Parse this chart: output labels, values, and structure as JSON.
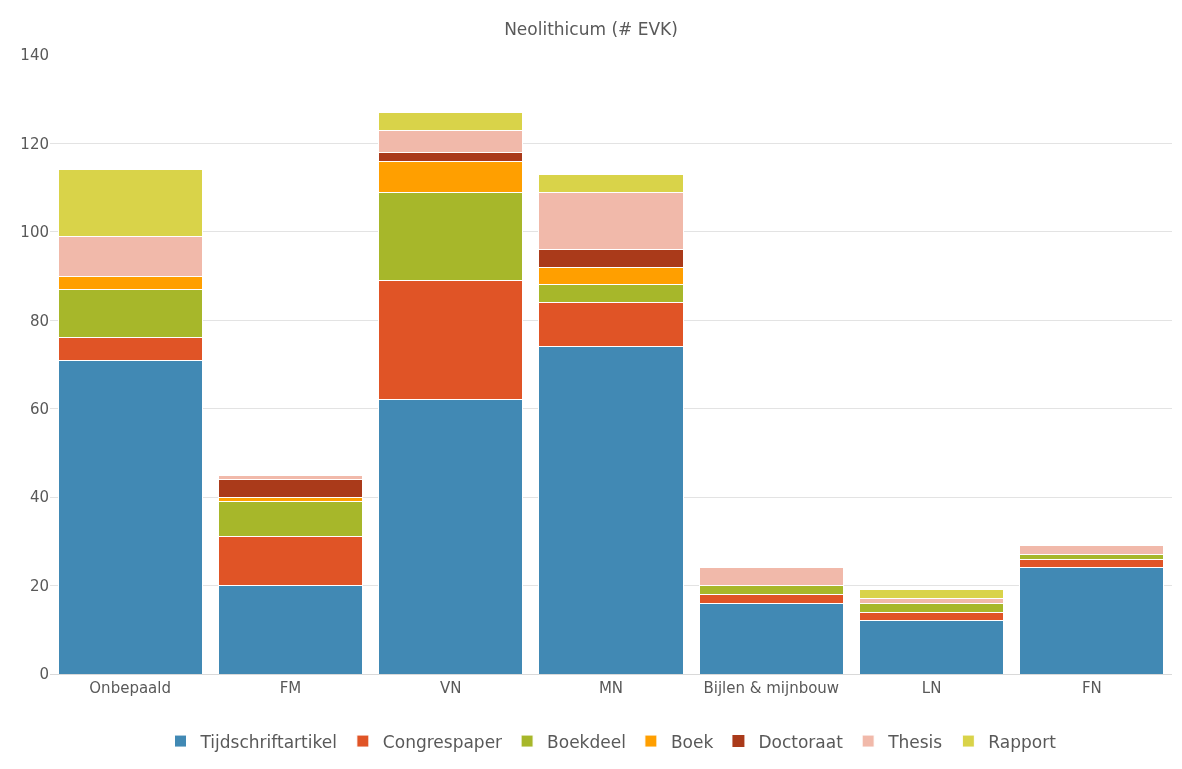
{
  "chart_data": {
    "type": "bar",
    "title": "Neolithicum (# EVK)",
    "stacked": true,
    "grid": "y",
    "legend": "bottom",
    "categories": [
      "Onbepaald",
      "FM",
      "VN",
      "MN",
      "Bijlen & mijnbouw",
      "LN",
      "FN"
    ],
    "ylim": [
      0,
      140
    ],
    "yticks": [
      0,
      20,
      40,
      60,
      80,
      100,
      120,
      140
    ],
    "series": [
      {
        "name": "Tijdschriftartikel",
        "color": "#4189b4",
        "values": [
          71,
          20,
          62,
          74,
          16,
          12,
          24
        ]
      },
      {
        "name": "Congrespaper",
        "color": "#e05426",
        "values": [
          5,
          11,
          27,
          10,
          2,
          2,
          2
        ]
      },
      {
        "name": "Boekdeel",
        "color": "#a7b72a",
        "values": [
          11,
          8,
          20,
          4,
          2,
          2,
          1
        ]
      },
      {
        "name": "Boek",
        "color": "#ff9f00",
        "values": [
          3,
          1,
          7,
          4,
          0,
          0,
          0
        ]
      },
      {
        "name": "Doctoraat",
        "color": "#aa3a1a",
        "values": [
          0,
          4,
          2,
          4,
          0,
          0,
          0
        ]
      },
      {
        "name": "Thesis",
        "color": "#f1b9aa",
        "values": [
          9,
          1,
          5,
          13,
          4,
          1,
          2
        ]
      },
      {
        "name": "Rapport",
        "color": "#d9d349",
        "values": [
          15,
          0,
          4,
          4,
          0,
          2,
          0
        ]
      }
    ]
  }
}
